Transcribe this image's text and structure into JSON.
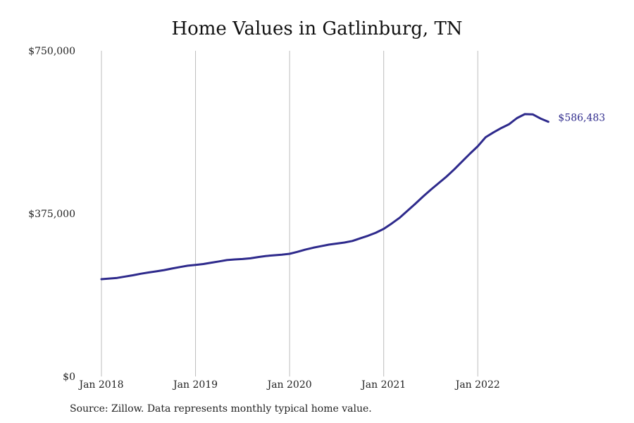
{
  "chart_data": {
    "type": "line",
    "title": "Home Values in Gatlinburg, TN",
    "xlabel": "",
    "ylabel": "",
    "grid": "vertical",
    "xlim": [
      "2018-01",
      "2022-10"
    ],
    "ylim": [
      0,
      750000
    ],
    "yticks": [
      {
        "value": 0,
        "label": "$0"
      },
      {
        "value": 375000,
        "label": "$375,000"
      },
      {
        "value": 750000,
        "label": "$750,000"
      }
    ],
    "xticks": [
      {
        "value": "2018-01",
        "label": "Jan 2018"
      },
      {
        "value": "2019-01",
        "label": "Jan 2019"
      },
      {
        "value": "2020-01",
        "label": "Jan 2020"
      },
      {
        "value": "2021-01",
        "label": "Jan 2021"
      },
      {
        "value": "2022-01",
        "label": "Jan 2022"
      }
    ],
    "line_color": "#2e2a8c",
    "grid_color": "#bdbdbd",
    "end_label": "$586,483",
    "series": [
      {
        "x": [
          "2018-01",
          "2018-02",
          "2018-03",
          "2018-04",
          "2018-05",
          "2018-06",
          "2018-07",
          "2018-08",
          "2018-09",
          "2018-10",
          "2018-11",
          "2018-12",
          "2019-01",
          "2019-02",
          "2019-03",
          "2019-04",
          "2019-05",
          "2019-06",
          "2019-07",
          "2019-08",
          "2019-09",
          "2019-10",
          "2019-11",
          "2019-12",
          "2020-01",
          "2020-02",
          "2020-03",
          "2020-04",
          "2020-05",
          "2020-06",
          "2020-07",
          "2020-08",
          "2020-09",
          "2020-10",
          "2020-11",
          "2020-12",
          "2021-01",
          "2021-02",
          "2021-03",
          "2021-04",
          "2021-05",
          "2021-06",
          "2021-07",
          "2021-08",
          "2021-09",
          "2021-10",
          "2021-11",
          "2021-12",
          "2022-01",
          "2022-02",
          "2022-03",
          "2022-04",
          "2022-05",
          "2022-06",
          "2022-07",
          "2022-08",
          "2022-09",
          "2022-10"
        ],
        "values": [
          224000,
          225500,
          227000,
          230000,
          233000,
          236500,
          239500,
          242000,
          245000,
          248500,
          252000,
          255000,
          257000,
          259000,
          262000,
          265000,
          268000,
          269500,
          270500,
          272000,
          275000,
          277500,
          279000,
          280500,
          282500,
          287000,
          292000,
          296500,
          300000,
          303500,
          306000,
          308500,
          312000,
          318000,
          324000,
          331000,
          340000,
          352000,
          365000,
          381000,
          397000,
          414000,
          430000,
          445000,
          460000,
          477000,
          495000,
          513000,
          530000,
          551000,
          562000,
          572000,
          581000,
          595000,
          604000,
          603500,
          594000,
          586483
        ]
      }
    ]
  },
  "footer": {
    "source": "Source: Zillow. Data represents monthly typical home value."
  }
}
